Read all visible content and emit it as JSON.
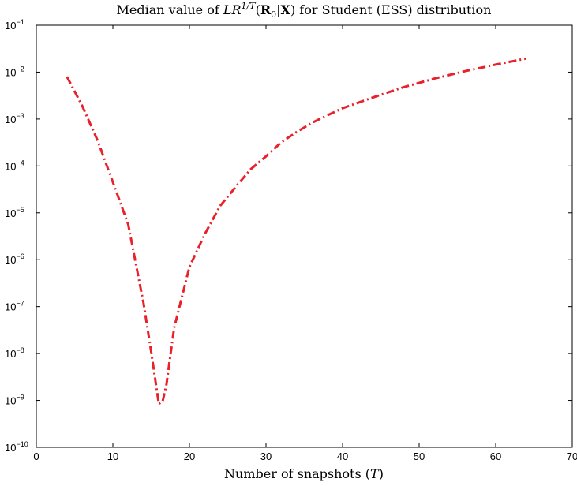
{
  "chart_data": {
    "type": "line",
    "title": "Median value of LR^{1/T}(R_0|X) for Student (ESS) distribution",
    "title_parts": {
      "prefix": "Median value of ",
      "lr": "LR",
      "exp": "1/T",
      "open": "(",
      "r": "R",
      "r_sub": "0",
      "bar": "|",
      "x": "X",
      "close": ")",
      "suffix": " for Student (ESS) distribution"
    },
    "xlabel": "Number of snapshots (T)",
    "xlabel_parts": {
      "prefix": "Number of snapshots (",
      "var": "T",
      "suffix": ")"
    },
    "ylabel": "",
    "xlim": [
      0,
      70
    ],
    "ylim": [
      1e-10,
      0.1
    ],
    "yscale": "log",
    "grid": false,
    "xticks": [
      0,
      10,
      20,
      30,
      40,
      50,
      60,
      70
    ],
    "xtick_labels": [
      "0",
      "10",
      "20",
      "30",
      "40",
      "50",
      "60",
      "70"
    ],
    "yticks_exp": [
      -1,
      -2,
      -3,
      -4,
      -5,
      -6,
      -7,
      -8,
      -9,
      -10
    ],
    "ytick_base": "10",
    "ytick_exp_labels": [
      "−1",
      "−2",
      "−3",
      "−4",
      "−5",
      "−6",
      "−7",
      "−8",
      "−9",
      "−10"
    ],
    "series": [
      {
        "color": "#e8212a",
        "linestyle": "dash-dot",
        "x": [
          4,
          6,
          8,
          10,
          12,
          14,
          15,
          16,
          16.5,
          17,
          18,
          20,
          22,
          24,
          26,
          28,
          30,
          32,
          34,
          36,
          38,
          40,
          44,
          48,
          52,
          56,
          60,
          64
        ],
        "y": [
          0.008,
          0.0019,
          0.00035,
          4.5e-05,
          5.7e-06,
          1.2e-07,
          1.1e-08,
          8.5e-10,
          9.5e-10,
          2.2e-09,
          3.5e-08,
          7e-07,
          3.5e-06,
          1.4e-05,
          3.5e-05,
          8.5e-05,
          0.00016,
          0.00032,
          0.00053,
          0.00083,
          0.0012,
          0.0017,
          0.0029,
          0.0048,
          0.0073,
          0.0105,
          0.0145,
          0.0195
        ]
      }
    ]
  }
}
